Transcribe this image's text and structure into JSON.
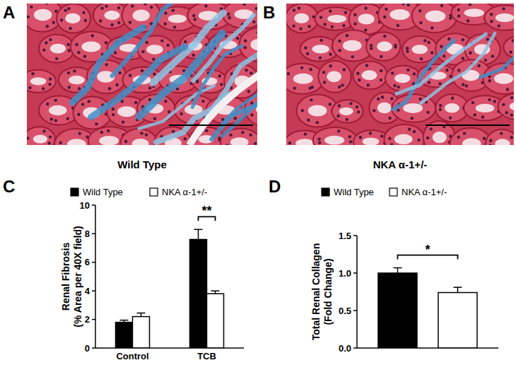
{
  "images": [
    {
      "letter": "A",
      "label": "Wild Type"
    },
    {
      "letter": "B",
      "label": "NKA α-1+/-"
    }
  ],
  "chart_data": [
    {
      "type": "bar",
      "title": "C",
      "categories": [
        "Control",
        "TCB"
      ],
      "series": [
        {
          "name": "Wild Type",
          "color": "#000000",
          "values": [
            1.8,
            7.6
          ],
          "errors": [
            0.15,
            0.7
          ]
        },
        {
          "name": "NKA α-1+/-",
          "color": "#ffffff",
          "values": [
            2.2,
            3.8
          ],
          "errors": [
            0.25,
            0.2
          ]
        }
      ],
      "y_label": "Renal Fibrosis\n(% Area per 40X field)",
      "ylim": [
        0,
        10
      ],
      "yticks": [
        0,
        2,
        4,
        6,
        8,
        10
      ],
      "legend": "top",
      "annotations": [
        {
          "text": "**",
          "category": 1
        }
      ]
    },
    {
      "type": "bar",
      "title": "D",
      "categories": [
        null
      ],
      "series": [
        {
          "name": "Wild Type",
          "color": "#000000",
          "values": [
            1.0
          ],
          "errors": [
            0.07
          ]
        },
        {
          "name": "NKA α-1+/-",
          "color": "#ffffff",
          "values": [
            0.74
          ],
          "errors": [
            0.07
          ]
        }
      ],
      "y_label": "Total Renal Collagen\n(Fold Change)",
      "ylim": [
        0,
        1.5
      ],
      "yticks": [
        {
          "value": 0,
          "label": "0.0"
        },
        {
          "value": 0.5,
          "label": "0.5"
        },
        {
          "value": 1,
          "label": "1.0"
        },
        {
          "value": 1.5,
          "label": "1.5"
        }
      ],
      "legend": "top",
      "annotations": [
        {
          "text": "*",
          "category": 0
        }
      ]
    }
  ]
}
